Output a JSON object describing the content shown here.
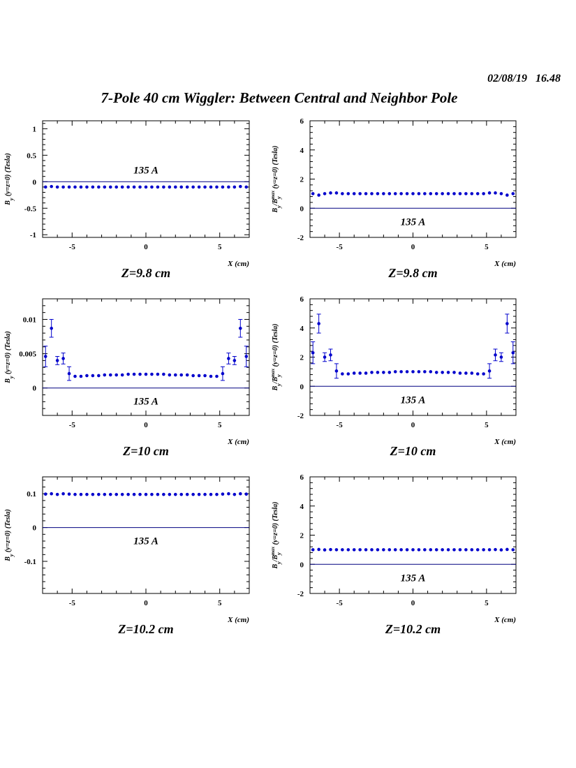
{
  "header": {
    "date": "02/08/19",
    "time": "16.48"
  },
  "title": "7-Pole 40 cm Wiggler: Between Central and Neighbor Pole",
  "chart_data": [
    {
      "type": "scatter",
      "position": "top-left",
      "ylabel": "B_y (y=z=0) (Tesla)",
      "xlabel": "X (cm)",
      "annotation": "135 A",
      "caption": "Z=9.8 cm",
      "xlim": [
        -7,
        7
      ],
      "ylim": [
        -1.05,
        1.15
      ],
      "xticks": [
        -5,
        0,
        5
      ],
      "xtick_labels": [
        "-5",
        "0",
        "5"
      ],
      "yticks": [
        -1,
        -0.5,
        0,
        0.5,
        1
      ],
      "ytick_labels": [
        "-1",
        "-0.5",
        "0",
        "0.5",
        "1"
      ],
      "reference_line": 0,
      "series": [
        {
          "x": [
            -6.8,
            -6.4,
            -6,
            -5.6,
            -5.2,
            -4.8,
            -4.4,
            -4,
            -3.6,
            -3.2,
            -2.8,
            -2.4,
            -2,
            -1.6,
            -1.2,
            -0.8,
            -0.4,
            0,
            0.4,
            0.8,
            1.2,
            1.6,
            2,
            2.4,
            2.8,
            3.2,
            3.6,
            4,
            4.4,
            4.8,
            5.2,
            5.6,
            6,
            6.4,
            6.8
          ],
          "y": [
            -0.1,
            -0.09,
            -0.1,
            -0.1,
            -0.1,
            -0.1,
            -0.1,
            -0.1,
            -0.1,
            -0.1,
            -0.1,
            -0.1,
            -0.1,
            -0.1,
            -0.1,
            -0.1,
            -0.1,
            -0.1,
            -0.1,
            -0.1,
            -0.1,
            -0.1,
            -0.1,
            -0.1,
            -0.1,
            -0.1,
            -0.1,
            -0.1,
            -0.1,
            -0.1,
            -0.1,
            -0.1,
            -0.1,
            -0.09,
            -0.1
          ]
        }
      ]
    },
    {
      "type": "scatter",
      "position": "top-right",
      "ylabel": "B_y/B_y^max (y=z=0) (Tesla)",
      "xlabel": "X (cm)",
      "annotation": "135 A",
      "caption": "Z=9.8 cm",
      "xlim": [
        -7,
        7
      ],
      "ylim": [
        -2,
        6
      ],
      "xticks": [
        -5,
        0,
        5
      ],
      "xtick_labels": [
        "-5",
        "0",
        "5"
      ],
      "yticks": [
        -2,
        0,
        2,
        4,
        6
      ],
      "ytick_labels": [
        "-2",
        "0",
        "2",
        "4",
        "6"
      ],
      "reference_line": 0,
      "series": [
        {
          "x": [
            -6.8,
            -6.4,
            -6,
            -5.6,
            -5.2,
            -4.8,
            -4.4,
            -4,
            -3.6,
            -3.2,
            -2.8,
            -2.4,
            -2,
            -1.6,
            -1.2,
            -0.8,
            -0.4,
            0,
            0.4,
            0.8,
            1.2,
            1.6,
            2,
            2.4,
            2.8,
            3.2,
            3.6,
            4,
            4.4,
            4.8,
            5.2,
            5.6,
            6,
            6.4,
            6.8
          ],
          "y": [
            1.0,
            0.9,
            1.0,
            1.05,
            1.05,
            1.0,
            1.0,
            1.0,
            1.0,
            1.0,
            1.0,
            1.0,
            1.0,
            1.0,
            1.0,
            1.0,
            1.0,
            1.0,
            1.0,
            1.0,
            1.0,
            1.0,
            1.0,
            1.0,
            1.0,
            1.0,
            1.0,
            1.0,
            1.0,
            1.0,
            1.05,
            1.05,
            1.0,
            0.9,
            1.0
          ]
        }
      ]
    },
    {
      "type": "scatter",
      "position": "middle-left",
      "ylabel": "B_y (y=z=0) (Tesla)",
      "xlabel": "X (cm)",
      "annotation": "135 A",
      "caption": "Z=10 cm",
      "xlim": [
        -7,
        7
      ],
      "ylim": [
        -0.004,
        0.013
      ],
      "xticks": [
        -5,
        0,
        5
      ],
      "xtick_labels": [
        "-5",
        "0",
        "5"
      ],
      "yticks": [
        0,
        0.005,
        0.01
      ],
      "ytick_labels": [
        "0",
        "0.005",
        "0.01"
      ],
      "reference_line": 0,
      "series": [
        {
          "x": [
            -6.8,
            -6.4,
            -6,
            -5.6,
            -5.2,
            -4.8,
            -4.4,
            -4,
            -3.6,
            -3.2,
            -2.8,
            -2.4,
            -2,
            -1.6,
            -1.2,
            -0.8,
            -0.4,
            0,
            0.4,
            0.8,
            1.2,
            1.6,
            2,
            2.4,
            2.8,
            3.2,
            3.6,
            4,
            4.4,
            4.8,
            5.2,
            5.6,
            6,
            6.4,
            6.8
          ],
          "y": [
            0.0046,
            0.0087,
            0.004,
            0.0043,
            0.0021,
            0.0017,
            0.0017,
            0.0018,
            0.0018,
            0.0018,
            0.0019,
            0.0019,
            0.0019,
            0.0019,
            0.002,
            0.002,
            0.002,
            0.002,
            0.002,
            0.002,
            0.002,
            0.0019,
            0.0019,
            0.0019,
            0.0019,
            0.0018,
            0.0018,
            0.0018,
            0.0017,
            0.0017,
            0.0021,
            0.0043,
            0.004,
            0.0087,
            0.0046
          ],
          "err": [
            0.0015,
            0.0013,
            0.0006,
            0.0008,
            0.001,
            0,
            0,
            0,
            0,
            0,
            0,
            0,
            0,
            0,
            0,
            0,
            0,
            0,
            0,
            0,
            0,
            0,
            0,
            0,
            0,
            0,
            0,
            0,
            0,
            0,
            0.001,
            0.0008,
            0.0006,
            0.0013,
            0.0015
          ]
        }
      ]
    },
    {
      "type": "scatter",
      "position": "middle-right",
      "ylabel": "B_y/B_y^max (y=z=0) (Tesla)",
      "xlabel": "X (cm)",
      "annotation": "135 A",
      "caption": "Z=10 cm",
      "xlim": [
        -7,
        7
      ],
      "ylim": [
        -2,
        6
      ],
      "xticks": [
        -5,
        0,
        5
      ],
      "xtick_labels": [
        "-5",
        "0",
        "5"
      ],
      "yticks": [
        -2,
        0,
        2,
        4,
        6
      ],
      "ytick_labels": [
        "-2",
        "0",
        "2",
        "4",
        "6"
      ],
      "reference_line": 0,
      "series": [
        {
          "x": [
            -6.8,
            -6.4,
            -6,
            -5.6,
            -5.2,
            -4.8,
            -4.4,
            -4,
            -3.6,
            -3.2,
            -2.8,
            -2.4,
            -2,
            -1.6,
            -1.2,
            -0.8,
            -0.4,
            0,
            0.4,
            0.8,
            1.2,
            1.6,
            2,
            2.4,
            2.8,
            3.2,
            3.6,
            4,
            4.4,
            4.8,
            5.2,
            5.6,
            6,
            6.4,
            6.8
          ],
          "y": [
            2.3,
            4.3,
            2.0,
            2.15,
            1.05,
            0.85,
            0.85,
            0.9,
            0.9,
            0.9,
            0.95,
            0.95,
            0.95,
            0.95,
            1.0,
            1.0,
            1.0,
            1.0,
            1.0,
            1.0,
            1.0,
            0.95,
            0.95,
            0.95,
            0.95,
            0.9,
            0.9,
            0.9,
            0.85,
            0.85,
            1.05,
            2.15,
            2.0,
            4.3,
            2.3
          ],
          "err": [
            0.75,
            0.65,
            0.3,
            0.4,
            0.5,
            0,
            0,
            0,
            0,
            0,
            0,
            0,
            0,
            0,
            0,
            0,
            0,
            0,
            0,
            0,
            0,
            0,
            0,
            0,
            0,
            0,
            0,
            0,
            0,
            0,
            0.5,
            0.4,
            0.3,
            0.65,
            0.75
          ]
        }
      ]
    },
    {
      "type": "scatter",
      "position": "bottom-left",
      "ylabel": "B_y (y=z=0) (Tesla)",
      "xlabel": "X (cm)",
      "annotation": "135 A",
      "caption": "Z=10.2 cm",
      "xlim": [
        -7,
        7
      ],
      "ylim": [
        -0.195,
        0.15
      ],
      "xticks": [
        -5,
        0,
        5
      ],
      "xtick_labels": [
        "-5",
        "0",
        "5"
      ],
      "yticks": [
        -0.1,
        0,
        0.1
      ],
      "ytick_labels": [
        "-0.1",
        "0",
        "0.1"
      ],
      "reference_line": 0,
      "series": [
        {
          "x": [
            -6.8,
            -6.4,
            -6,
            -5.6,
            -5.2,
            -4.8,
            -4.4,
            -4,
            -3.6,
            -3.2,
            -2.8,
            -2.4,
            -2,
            -1.6,
            -1.2,
            -0.8,
            -0.4,
            0,
            0.4,
            0.8,
            1.2,
            1.6,
            2,
            2.4,
            2.8,
            3.2,
            3.6,
            4,
            4.4,
            4.8,
            5.2,
            5.6,
            6,
            6.4,
            6.8
          ],
          "y": [
            0.099,
            0.1,
            0.098,
            0.1,
            0.099,
            0.098,
            0.098,
            0.098,
            0.098,
            0.098,
            0.098,
            0.098,
            0.098,
            0.098,
            0.098,
            0.098,
            0.098,
            0.098,
            0.098,
            0.098,
            0.098,
            0.098,
            0.098,
            0.098,
            0.098,
            0.098,
            0.098,
            0.098,
            0.098,
            0.098,
            0.099,
            0.1,
            0.098,
            0.1,
            0.099
          ]
        }
      ]
    },
    {
      "type": "scatter",
      "position": "bottom-right",
      "ylabel": "B_y/B_y^max (y=z=0) (Tesla)",
      "xlabel": "X (cm)",
      "annotation": "135 A",
      "caption": "Z=10.2 cm",
      "xlim": [
        -7,
        7
      ],
      "ylim": [
        -2,
        6
      ],
      "xticks": [
        -5,
        0,
        5
      ],
      "xtick_labels": [
        "-5",
        "0",
        "5"
      ],
      "yticks": [
        -2,
        0,
        2,
        4,
        6
      ],
      "ytick_labels": [
        "-2",
        "0",
        "2",
        "4",
        "6"
      ],
      "reference_line": 0,
      "series": [
        {
          "x": [
            -6.8,
            -6.4,
            -6,
            -5.6,
            -5.2,
            -4.8,
            -4.4,
            -4,
            -3.6,
            -3.2,
            -2.8,
            -2.4,
            -2,
            -1.6,
            -1.2,
            -0.8,
            -0.4,
            0,
            0.4,
            0.8,
            1.2,
            1.6,
            2,
            2.4,
            2.8,
            3.2,
            3.6,
            4,
            4.4,
            4.8,
            5.2,
            5.6,
            6,
            6.4,
            6.8
          ],
          "y": [
            1.0,
            1.02,
            0.99,
            1.01,
            1.0,
            1.0,
            1.0,
            1.0,
            1.0,
            1.0,
            1.0,
            1.0,
            1.0,
            1.0,
            1.0,
            1.0,
            1.0,
            1.0,
            1.0,
            1.0,
            1.0,
            1.0,
            1.0,
            1.0,
            1.0,
            1.0,
            1.0,
            1.0,
            1.0,
            1.0,
            1.0,
            1.01,
            0.99,
            1.02,
            1.0
          ]
        }
      ]
    }
  ],
  "colors": {
    "marker": "#0000cc",
    "axes": "#000000",
    "reference_line": "#000080"
  }
}
